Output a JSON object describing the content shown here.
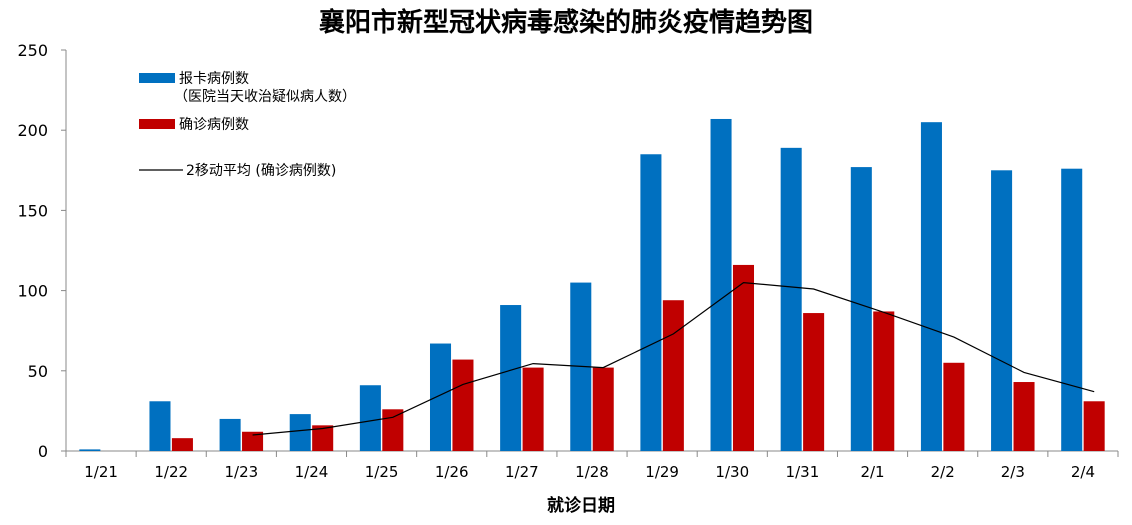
{
  "chart_data": {
    "type": "bar",
    "title": "襄阳市新型冠状病毒感染的肺炎疫情趋势图",
    "xlabel": "就诊日期",
    "ylabel": "",
    "ylim": [
      0,
      250
    ],
    "yticks": [
      0,
      50,
      100,
      150,
      200,
      250
    ],
    "categories": [
      "1/21",
      "1/22",
      "1/23",
      "1/24",
      "1/25",
      "1/26",
      "1/27",
      "1/28",
      "1/29",
      "1/30",
      "1/31",
      "2/1",
      "2/2",
      "2/3",
      "2/4"
    ],
    "series": [
      {
        "name": "报卡病例数",
        "name_line2": "（医院当天收治疑似病人数）",
        "type": "bar",
        "color": "#0070C0",
        "values": [
          1,
          31,
          20,
          23,
          41,
          67,
          91,
          105,
          185,
          207,
          189,
          177,
          205,
          175,
          176
        ]
      },
      {
        "name": "确诊病例数",
        "type": "bar",
        "color": "#C00000",
        "values": [
          null,
          8,
          12,
          16,
          26,
          57,
          52,
          52,
          94,
          116,
          86,
          87,
          55,
          43,
          31
        ]
      },
      {
        "name": "2移动平均 (确诊病例数)",
        "type": "line",
        "color": "#000000",
        "values": [
          null,
          null,
          10,
          14,
          21,
          41.5,
          54.5,
          52,
          73,
          105,
          101,
          86.5,
          71,
          49,
          37
        ]
      }
    ],
    "legend": "top-left",
    "grid": false
  }
}
